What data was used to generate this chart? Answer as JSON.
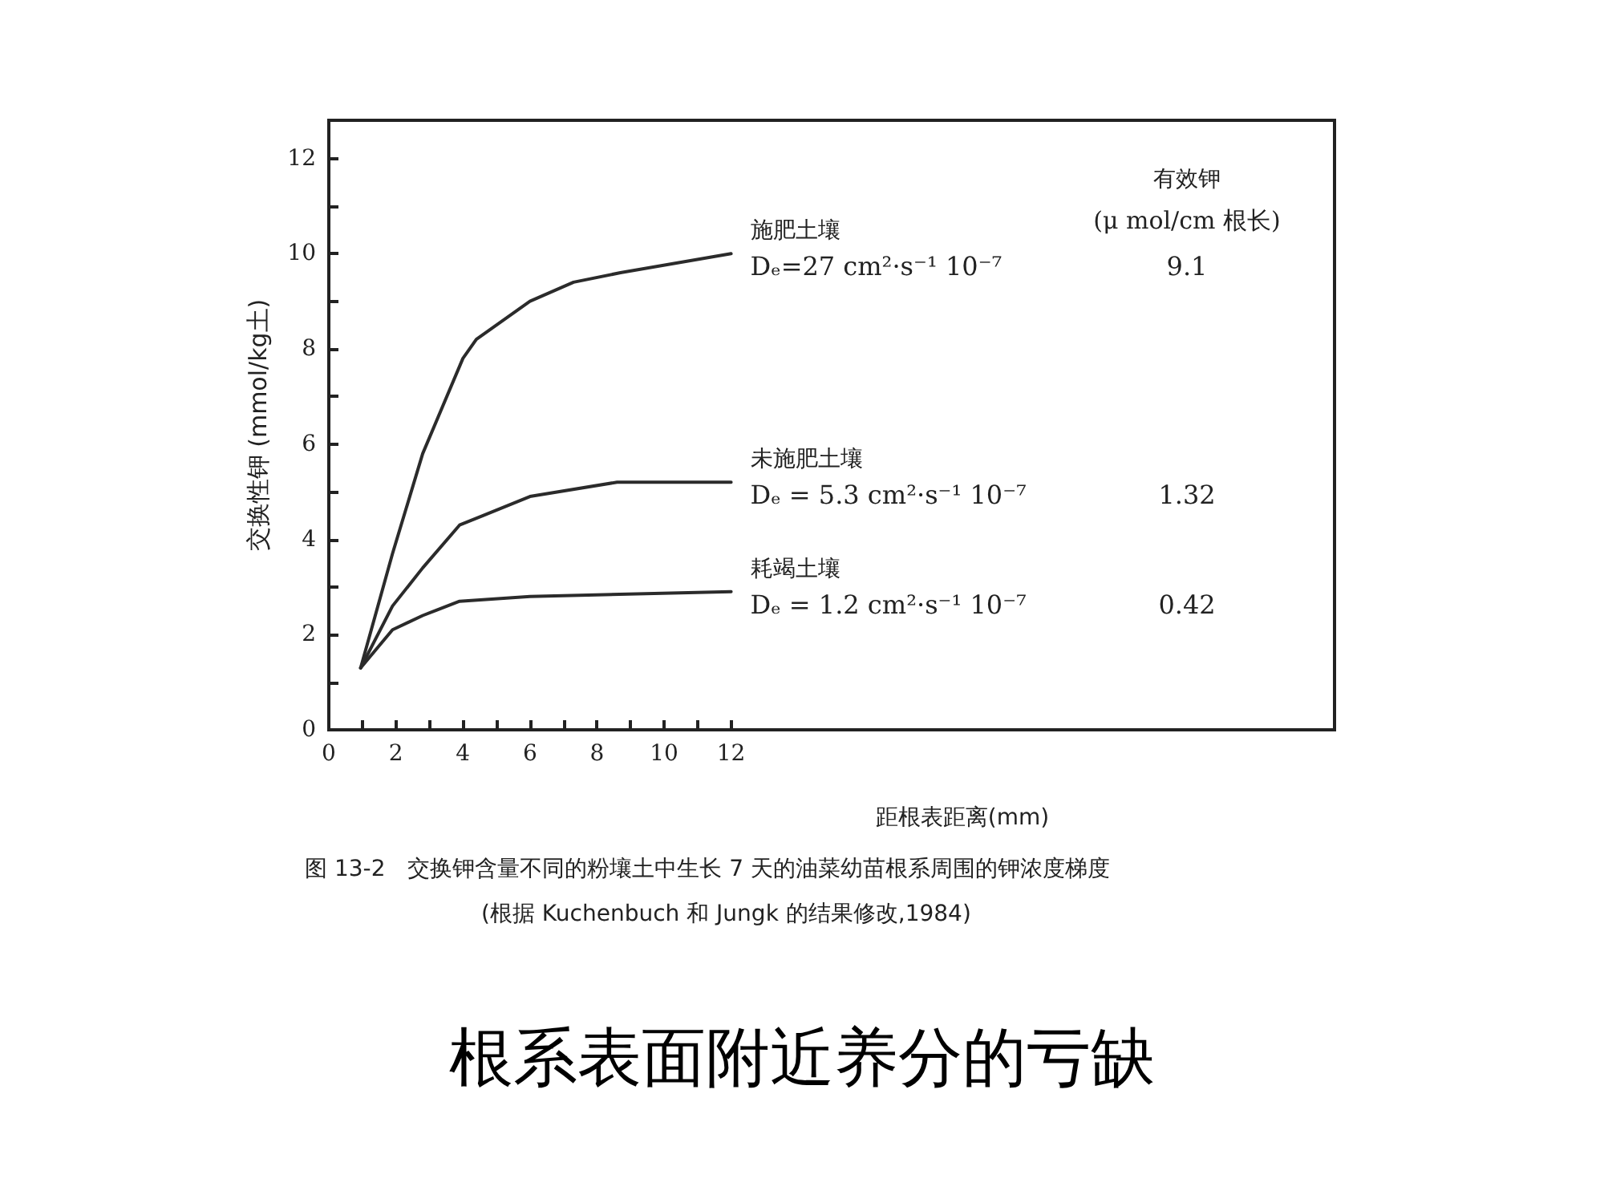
{
  "chart_data": {
    "type": "line",
    "title": "根系表面附近养分的亏缺",
    "xlabel": "距根表距离(mm)",
    "ylabel": "交换性钾 (mmol/kg土)",
    "xlim": [
      0,
      30
    ],
    "ylim": [
      0,
      12.8
    ],
    "xticks": [
      0,
      {
        "value": 1,
        "label": null
      },
      2,
      {
        "value": 3,
        "label": null
      },
      4,
      {
        "value": 5,
        "label": null
      },
      6,
      {
        "value": 7,
        "label": null
      },
      8,
      {
        "value": 9,
        "label": null
      },
      10,
      {
        "value": 11,
        "label": null
      },
      12
    ],
    "yticks": [
      0,
      {
        "value": 1,
        "label": null
      },
      2,
      {
        "value": 3,
        "label": null
      },
      4,
      {
        "value": 5,
        "label": null
      },
      6,
      {
        "value": 7,
        "label": null
      },
      8,
      {
        "value": 9,
        "label": null
      },
      10,
      {
        "value": 11,
        "label": null
      },
      12
    ],
    "grid": false,
    "legend": false,
    "marker": "none",
    "line_style": "solid",
    "series": [
      {
        "name": "施肥土壤",
        "color": "#2b2b2b",
        "x": [
          0.95,
          1.9,
          2.8,
          4,
          4.4,
          6,
          7.3,
          8.7,
          12
        ],
        "values": [
          1.3,
          3.7,
          5.8,
          7.8,
          8.2,
          9,
          9.4,
          9.6,
          10
        ]
      },
      {
        "name": "未施肥土壤",
        "color": "#2b2b2b",
        "x": [
          0.95,
          1.9,
          2.8,
          3.9,
          4.6,
          6,
          8.6,
          12
        ],
        "values": [
          1.3,
          2.6,
          3.4,
          4.3,
          4.5,
          4.9,
          5.2,
          5.2
        ]
      },
      {
        "name": "耗竭土壤",
        "color": "#2b2b2b",
        "x": [
          0.95,
          1.9,
          2.8,
          3.9,
          6,
          12
        ],
        "values": [
          1.3,
          2.1,
          2.4,
          2.7,
          2.8,
          2.9
        ]
      }
    ],
    "annotations": [
      "Dₑ=27 cm²·s⁻¹ 10⁻⁷",
      "Dₑ = 5.3 cm²·s⁻¹ 10⁻⁷",
      "Dₑ = 1.2 cm²·s⁻¹ 10⁻⁷",
      "有效钾",
      "(μ mol/cm 根长)",
      "9.1",
      "1.32",
      "0.42",
      "图 13-2　交换钾含量不同的粉壤土中生长 7 天的油菜幼苗根系周围的钾浓度梯度",
      "(根据 Kuchenbuch 和 Jungk 的结果修改,1984)"
    ]
  }
}
